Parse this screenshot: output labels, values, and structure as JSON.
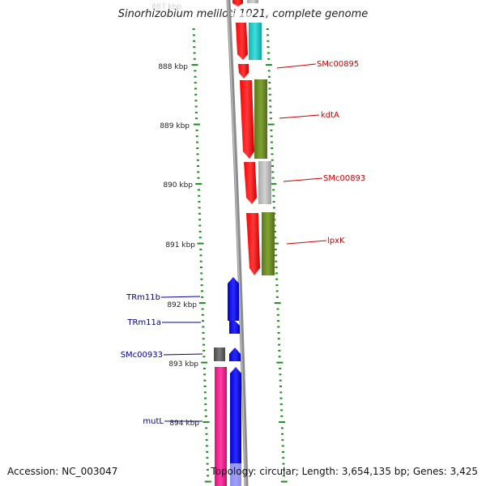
{
  "title": "Sinorhizobium meliloti 1021, complete genome",
  "footer": {
    "accession": "Accession: NC_003047",
    "summary": "Topology: circular; Length: 3,654,135 bp; Genes: 3,425"
  },
  "colors": {
    "backbone": "#8c8c8c",
    "tick": "#1e8c1e",
    "label_right": "#cc0000",
    "label_left": "#00008b",
    "red": "#ff0000",
    "cyan": "#22cccc",
    "olive": "#6b8e23",
    "gray": "#bdbdbd",
    "blue": "#0000ff",
    "darkgray": "#666666",
    "magenta": "#ff1493"
  },
  "scale_labels": [
    "887 kbp",
    "888 kbp",
    "889 kbp",
    "890 kbp",
    "891 kbp",
    "892 kbp",
    "893 kbp",
    "894 kbp"
  ],
  "gene_labels_right": [
    "SMc00895",
    "kdtA",
    "SMc00893",
    "lpxK"
  ],
  "gene_labels_left": [
    "TRm11b",
    "TRm11a",
    "SMc00933",
    "mutL"
  ]
}
